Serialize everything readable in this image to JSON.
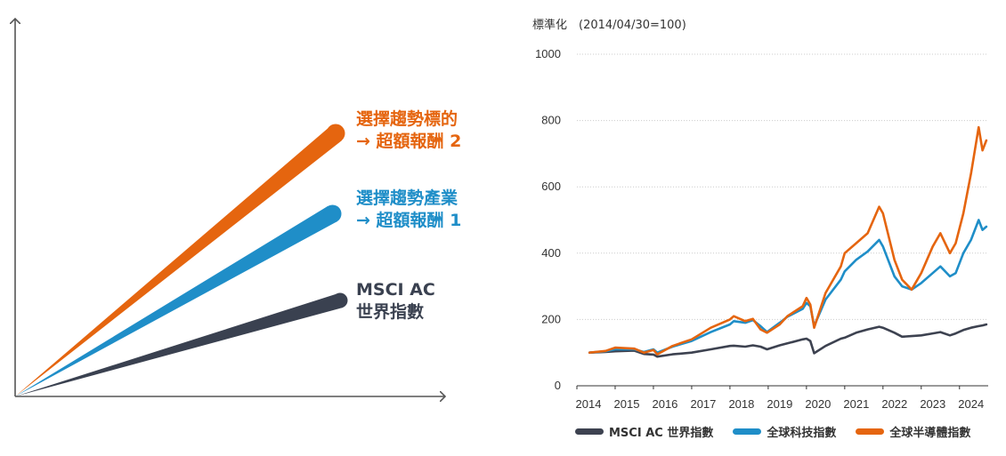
{
  "concept": {
    "labels": [
      {
        "line1": "選擇趨勢標的",
        "line2": "→ 超額報酬 2",
        "color": "#e5650f"
      },
      {
        "line1": "選擇趨勢產業",
        "line2": "→ 超額報酬 1",
        "color": "#1f8ec8"
      },
      {
        "line1": "MSCI AC",
        "line2": "世界指數",
        "color": "#3a4150"
      }
    ]
  },
  "chart": {
    "subtitle": "標準化　(2014/04/30=100)"
  },
  "chart_data": {
    "type": "line",
    "title": "",
    "ylabel": "標準化　(2014/04/30=100)",
    "xlabel": "",
    "ylim": [
      0,
      1000
    ],
    "yticks": [
      "0",
      "200",
      "400",
      "600",
      "800",
      "1000"
    ],
    "xticks": [
      "2014",
      "2015",
      "2016",
      "2017",
      "2018",
      "2019",
      "2020",
      "2021",
      "2022",
      "2023",
      "2024"
    ],
    "grid": true,
    "legend": "bottom",
    "x": [
      2014.33,
      2014.75,
      2015.0,
      2015.5,
      2015.75,
      2016.0,
      2016.1,
      2016.5,
      2017.0,
      2017.5,
      2018.0,
      2018.1,
      2018.4,
      2018.6,
      2018.8,
      2018.97,
      2019.3,
      2019.5,
      2019.9,
      2020.0,
      2020.1,
      2020.2,
      2020.5,
      2020.9,
      2021.0,
      2021.3,
      2021.6,
      2021.9,
      2022.0,
      2022.3,
      2022.5,
      2022.75,
      2023.0,
      2023.3,
      2023.5,
      2023.75,
      2023.9,
      2024.1,
      2024.3,
      2024.5,
      2024.6,
      2024.7
    ],
    "series": [
      {
        "name": "MSCI AC 世界指數",
        "color": "#3d4250",
        "values": [
          100,
          102,
          104,
          106,
          96,
          94,
          88,
          95,
          100,
          110,
          120,
          121,
          118,
          122,
          118,
          110,
          122,
          128,
          140,
          142,
          135,
          98,
          120,
          142,
          145,
          160,
          170,
          178,
          175,
          160,
          148,
          150,
          152,
          158,
          162,
          152,
          158,
          168,
          175,
          180,
          182,
          185
        ]
      },
      {
        "name": "全球科技指數",
        "color": "#1f8ec8",
        "values": [
          100,
          104,
          110,
          110,
          102,
          110,
          100,
          118,
          135,
          162,
          185,
          195,
          190,
          198,
          180,
          162,
          190,
          208,
          232,
          250,
          240,
          180,
          260,
          320,
          345,
          380,
          405,
          440,
          420,
          330,
          300,
          290,
          310,
          340,
          360,
          330,
          340,
          400,
          440,
          500,
          470,
          480
        ]
      },
      {
        "name": "全球半導體指數",
        "color": "#e5650f",
        "values": [
          100,
          105,
          115,
          112,
          100,
          108,
          95,
          120,
          140,
          175,
          200,
          210,
          195,
          202,
          170,
          160,
          185,
          210,
          240,
          265,
          245,
          175,
          280,
          360,
          400,
          430,
          460,
          540,
          520,
          380,
          320,
          290,
          340,
          420,
          460,
          400,
          430,
          520,
          640,
          780,
          710,
          740
        ]
      }
    ]
  }
}
